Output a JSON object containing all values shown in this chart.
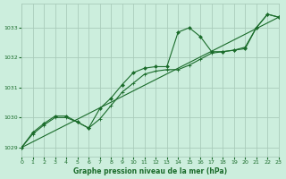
{
  "title": "Graphe pression niveau de la mer (hPa)",
  "bg_color": "#cceedd",
  "grid_color": "#aaccbb",
  "line_color": "#1a6b2a",
  "x_ticks": [
    0,
    1,
    2,
    3,
    4,
    5,
    6,
    7,
    8,
    9,
    10,
    11,
    12,
    13,
    14,
    15,
    16,
    17,
    18,
    19,
    20,
    21,
    22,
    23
  ],
  "y_ticks": [
    1029,
    1030,
    1031,
    1032,
    1033
  ],
  "xlim": [
    0,
    23
  ],
  "ylim": [
    1028.7,
    1033.8
  ],
  "line1_x": [
    0,
    1,
    2,
    3,
    4,
    5,
    6,
    7,
    8,
    9,
    10,
    11,
    12,
    13,
    14,
    15,
    16,
    17,
    18,
    19,
    20,
    21,
    22,
    23
  ],
  "line1_y": [
    1029.0,
    1029.5,
    1029.8,
    1030.05,
    1030.05,
    1029.85,
    1029.65,
    1030.3,
    1030.65,
    1031.1,
    1031.5,
    1031.65,
    1031.7,
    1031.7,
    1032.85,
    1033.0,
    1032.7,
    1032.2,
    1032.2,
    1032.25,
    1032.3,
    1033.0,
    1033.45,
    1033.35
  ],
  "line2_x": [
    0,
    1,
    2,
    3,
    4,
    5,
    6,
    7,
    8,
    9,
    10,
    11,
    12,
    13,
    14,
    15,
    16,
    17,
    18,
    19,
    20,
    21,
    22,
    23
  ],
  "line2_y": [
    1029.0,
    1029.45,
    1029.75,
    1030.0,
    1030.0,
    1029.85,
    1029.65,
    1029.95,
    1030.4,
    1030.85,
    1031.15,
    1031.45,
    1031.55,
    1031.6,
    1031.6,
    1031.75,
    1031.95,
    1032.15,
    1032.2,
    1032.25,
    1032.35,
    1033.0,
    1033.45,
    1033.35
  ],
  "line3_x": [
    0,
    23
  ],
  "line3_y": [
    1029.0,
    1033.35
  ]
}
